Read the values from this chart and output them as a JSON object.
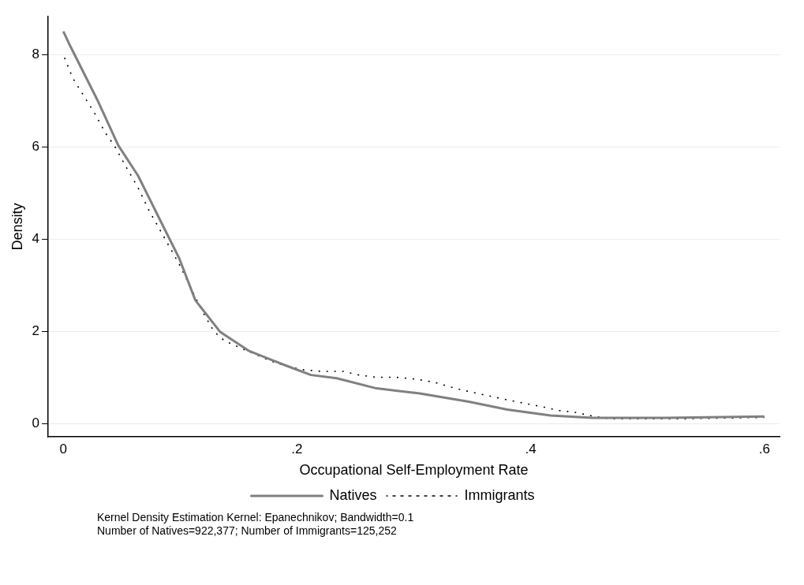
{
  "chart_data": {
    "type": "line",
    "xlabel": "Occupational Self-Employment Rate",
    "ylabel": "Density",
    "series": [
      {
        "name": "Natives",
        "color": "#808080",
        "line_style": "solid",
        "x": [
          0,
          0.005,
          0.029,
          0.047,
          0.064,
          0.082,
          0.099,
          0.113,
          0.134,
          0.159,
          0.178,
          0.192,
          0.212,
          0.234,
          0.268,
          0.305,
          0.347,
          0.38,
          0.417,
          0.453,
          0.515,
          0.6
        ],
        "values": [
          8.51,
          8.24,
          7.03,
          6.04,
          5.38,
          4.46,
          3.6,
          2.68,
          2.0,
          1.58,
          1.39,
          1.25,
          1.06,
          0.99,
          0.77,
          0.66,
          0.48,
          0.31,
          0.18,
          0.13,
          0.13,
          0.16
        ]
      },
      {
        "name": "Immigrants",
        "color": "#000000",
        "line_style": "dashed",
        "x": [
          0.001,
          0.008,
          0.019,
          0.026,
          0.036,
          0.044,
          0.054,
          0.064,
          0.073,
          0.08,
          0.091,
          0.099,
          0.119,
          0.129,
          0.138,
          0.155,
          0.178,
          0.191,
          0.206,
          0.22,
          0.239,
          0.253,
          0.268,
          0.285,
          0.302,
          0.318,
          0.33,
          0.342,
          0.358,
          0.371,
          0.382,
          0.396,
          0.41,
          0.424,
          0.436,
          0.453,
          0.467,
          0.53,
          0.6
        ],
        "values": [
          7.94,
          7.5,
          7.05,
          6.77,
          6.31,
          6.02,
          5.56,
          5.12,
          4.64,
          4.33,
          3.83,
          3.47,
          2.44,
          2.0,
          1.8,
          1.61,
          1.36,
          1.25,
          1.17,
          1.14,
          1.14,
          1.06,
          1.01,
          1.01,
          0.97,
          0.9,
          0.81,
          0.73,
          0.64,
          0.57,
          0.51,
          0.44,
          0.37,
          0.29,
          0.26,
          0.17,
          0.11,
          0.11,
          0.14
        ]
      }
    ],
    "xlim": [
      -0.013,
      0.613
    ],
    "xticks": [
      {
        "value": 0,
        "label": "0"
      },
      {
        "value": 0.2,
        "label": ".2"
      },
      {
        "value": 0.4,
        "label": ".4"
      },
      {
        "value": 0.6,
        "label": ".6"
      }
    ],
    "ylim": [
      -0.28,
      8.83
    ],
    "yticks": [
      0,
      2,
      4,
      6,
      8
    ],
    "grid": "y",
    "legend": "bottom",
    "marker": "none",
    "annotations": [
      "Kernel Density Estimation Kernel: Epanechnikov; Bandwidth=0.1",
      "Number of Natives=922,377; Number of Immigrants=125,252"
    ]
  }
}
